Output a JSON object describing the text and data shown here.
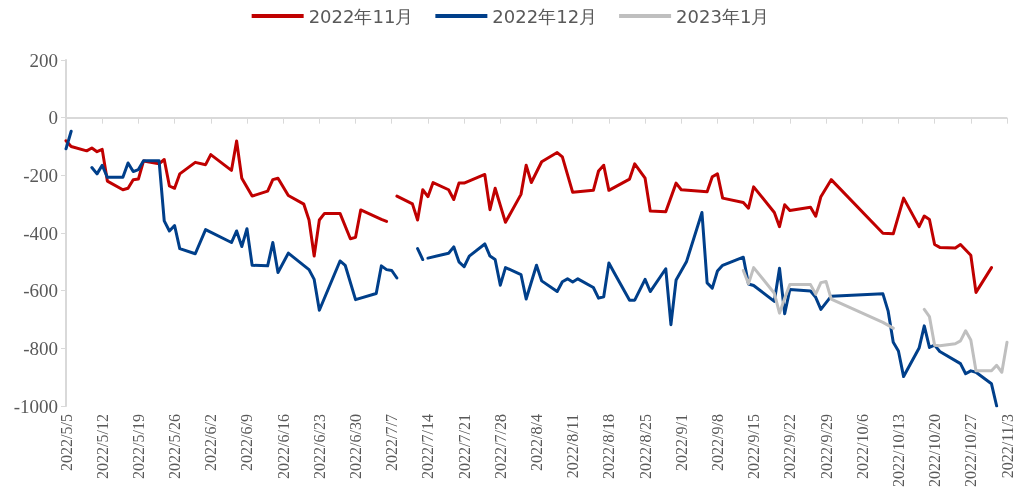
{
  "chart_data": {
    "type": "line",
    "legend": "top",
    "grid": false,
    "marker": "none",
    "line_style": "solid",
    "ref_lines": [
      {
        "axis": "y",
        "value": 0,
        "color": "#d9d9d9"
      }
    ],
    "ylim": [
      -1000,
      200
    ],
    "yticks": [
      -1000,
      -800,
      -600,
      -400,
      -200,
      0,
      200
    ],
    "xlim": [
      "2022-05-05",
      "2022-11-03"
    ],
    "xticks": [
      {
        "value": "2022-05-05",
        "label": "2022/5/5"
      },
      {
        "value": "2022-05-12",
        "label": "2022/5/12"
      },
      {
        "value": "2022-05-19",
        "label": "2022/5/19"
      },
      {
        "value": "2022-05-26",
        "label": "2022/5/26"
      },
      {
        "value": "2022-06-02",
        "label": "2022/6/2"
      },
      {
        "value": "2022-06-09",
        "label": "2022/6/9"
      },
      {
        "value": "2022-06-16",
        "label": "2022/6/16"
      },
      {
        "value": "2022-06-23",
        "label": "2022/6/23"
      },
      {
        "value": "2022-06-30",
        "label": "2022/6/30"
      },
      {
        "value": "2022-07-07",
        "label": "2022/7/7"
      },
      {
        "value": "2022-07-14",
        "label": "2022/7/14"
      },
      {
        "value": "2022-07-21",
        "label": "2022/7/21"
      },
      {
        "value": "2022-07-28",
        "label": "2022/7/28"
      },
      {
        "value": "2022-08-04",
        "label": "2022/8/4"
      },
      {
        "value": "2022-08-11",
        "label": "2022/8/11"
      },
      {
        "value": "2022-08-18",
        "label": "2022/8/18"
      },
      {
        "value": "2022-08-25",
        "label": "2022/8/25"
      },
      {
        "value": "2022-09-01",
        "label": "2022/9/1"
      },
      {
        "value": "2022-09-08",
        "label": "2022/9/8"
      },
      {
        "value": "2022-09-15",
        "label": "2022/9/15"
      },
      {
        "value": "2022-09-22",
        "label": "2022/9/22"
      },
      {
        "value": "2022-09-29",
        "label": "2022/9/29"
      },
      {
        "value": "2022-10-06",
        "label": "2022/10/6"
      },
      {
        "value": "2022-10-13",
        "label": "2022/10/13"
      },
      {
        "value": "2022-10-20",
        "label": "2022/10/20"
      },
      {
        "value": "2022-10-27",
        "label": "2022/10/27"
      },
      {
        "value": "2022-11-03",
        "label": "2022/11/3"
      }
    ],
    "series": [
      {
        "name": "2022年11月",
        "color": "#c00000",
        "x": [
          "2022-05-05",
          "2022-05-06",
          "2022-05-09",
          "2022-05-10",
          "2022-05-11",
          "2022-05-12",
          "2022-05-13",
          "2022-05-16",
          "2022-05-17",
          "2022-05-18",
          "2022-05-19",
          "2022-05-20",
          "2022-05-23",
          "2022-05-24",
          "2022-05-25",
          "2022-05-26",
          "2022-05-27",
          "2022-05-30",
          "2022-06-01",
          "2022-06-02",
          "2022-06-06",
          "2022-06-07",
          "2022-06-08",
          "2022-06-10",
          "2022-06-13",
          "2022-06-14",
          "2022-06-15",
          "2022-06-17",
          "2022-06-20",
          "2022-06-21",
          "2022-06-22",
          "2022-06-23",
          "2022-06-24",
          "2022-06-27",
          "2022-06-29",
          "2022-06-30",
          "2022-07-01",
          "2022-07-05",
          "2022-07-06",
          "2022-07-07",
          "2022-07-08",
          "2022-07-11",
          "2022-07-12",
          "2022-07-13",
          "2022-07-14",
          "2022-07-15",
          "2022-07-18",
          "2022-07-19",
          "2022-07-20",
          "2022-07-21",
          "2022-07-25",
          "2022-07-26",
          "2022-07-27",
          "2022-07-29",
          "2022-08-01",
          "2022-08-02",
          "2022-08-03",
          "2022-08-05",
          "2022-08-08",
          "2022-08-09",
          "2022-08-11",
          "2022-08-15",
          "2022-08-16",
          "2022-08-17",
          "2022-08-18",
          "2022-08-22",
          "2022-08-23",
          "2022-08-25",
          "2022-08-26",
          "2022-08-29",
          "2022-08-31",
          "2022-09-01",
          "2022-09-06",
          "2022-09-07",
          "2022-09-08",
          "2022-09-09",
          "2022-09-13",
          "2022-09-14",
          "2022-09-15",
          "2022-09-19",
          "2022-09-20",
          "2022-09-21",
          "2022-09-22",
          "2022-09-26",
          "2022-09-27",
          "2022-09-28",
          "2022-09-30",
          "2022-10-10",
          "2022-10-12",
          "2022-10-14",
          "2022-10-17",
          "2022-10-18",
          "2022-10-19",
          "2022-10-20",
          "2022-10-21",
          "2022-10-24",
          "2022-10-25",
          "2022-10-27",
          "2022-10-28",
          "2022-10-31"
        ],
        "values": [
          -80,
          -100,
          -115,
          -105,
          -118,
          -110,
          -220,
          -250,
          -245,
          -215,
          -213,
          -150,
          -160,
          -145,
          -237,
          -245,
          -195,
          -155,
          -163,
          -128,
          -183,
          -81,
          -210,
          -272,
          -255,
          -215,
          -210,
          -270,
          -300,
          -355,
          -480,
          -355,
          -332,
          -332,
          -420,
          -415,
          -320,
          -353,
          -360,
          null,
          -272,
          -299,
          -355,
          -250,
          -274,
          -225,
          -250,
          -284,
          -227,
          -227,
          -197,
          -319,
          -245,
          -363,
          -266,
          -165,
          -225,
          -153,
          -121,
          -136,
          -259,
          -252,
          -185,
          -165,
          -252,
          -213,
          -160,
          -210,
          -324,
          -326,
          -227,
          -250,
          -257,
          -205,
          -195,
          -279,
          -294,
          -314,
          -240,
          -329,
          -378,
          -302,
          -322,
          -311,
          -342,
          -274,
          -215,
          -401,
          -403,
          -279,
          -378,
          -341,
          -353,
          -440,
          -450,
          -452,
          -440,
          -477,
          -606,
          -520
        ]
      },
      {
        "name": "2022年12月",
        "color": "#003f8a",
        "x": [
          "2022-05-05",
          "2022-05-06",
          "2022-05-09",
          "2022-05-10",
          "2022-05-11",
          "2022-05-12",
          "2022-05-13",
          "2022-05-16",
          "2022-05-17",
          "2022-05-18",
          "2022-05-19",
          "2022-05-20",
          "2022-05-23",
          "2022-05-24",
          "2022-05-25",
          "2022-05-26",
          "2022-05-27",
          "2022-05-30",
          "2022-06-01",
          "2022-06-06",
          "2022-06-07",
          "2022-06-08",
          "2022-06-09",
          "2022-06-10",
          "2022-06-13",
          "2022-06-14",
          "2022-06-15",
          "2022-06-17",
          "2022-06-21",
          "2022-06-22",
          "2022-06-23",
          "2022-06-27",
          "2022-06-28",
          "2022-06-30",
          "2022-07-04",
          "2022-07-05",
          "2022-07-06",
          "2022-07-07",
          "2022-07-08",
          "2022-07-11",
          "2022-07-12",
          "2022-07-13",
          "2022-07-13T12:00",
          "2022-07-14",
          "2022-07-18",
          "2022-07-19",
          "2022-07-20",
          "2022-07-21",
          "2022-07-22",
          "2022-07-25",
          "2022-07-26",
          "2022-07-27",
          "2022-07-28",
          "2022-07-29",
          "2022-08-01",
          "2022-08-02",
          "2022-08-04",
          "2022-08-05",
          "2022-08-08",
          "2022-08-09",
          "2022-08-10",
          "2022-08-11",
          "2022-08-12",
          "2022-08-15",
          "2022-08-16",
          "2022-08-17",
          "2022-08-18",
          "2022-08-19",
          "2022-08-22",
          "2022-08-23",
          "2022-08-25",
          "2022-08-26",
          "2022-08-29",
          "2022-08-30",
          "2022-08-31",
          "2022-09-02",
          "2022-09-05",
          "2022-09-06",
          "2022-09-07",
          "2022-09-08",
          "2022-09-09",
          "2022-09-13",
          "2022-09-14",
          "2022-09-15",
          "2022-09-19",
          "2022-09-20",
          "2022-09-21",
          "2022-09-22",
          "2022-09-26",
          "2022-09-27",
          "2022-09-28",
          "2022-09-30",
          "2022-10-10",
          "2022-10-11",
          "2022-10-12",
          "2022-10-13",
          "2022-10-14",
          "2022-10-17",
          "2022-10-18",
          "2022-10-19",
          "2022-10-20",
          "2022-10-21",
          "2022-10-25",
          "2022-10-26",
          "2022-10-27",
          "2022-10-28",
          "2022-10-31",
          "2022-11-01"
        ],
        "values": [
          -108,
          -47,
          null,
          -173,
          -195,
          -165,
          -207,
          -207,
          -157,
          -187,
          -180,
          -149,
          -149,
          -358,
          -393,
          -374,
          -454,
          -472,
          -388,
          -433,
          -393,
          -447,
          -385,
          -512,
          -514,
          -433,
          -537,
          -470,
          -527,
          -561,
          -668,
          -497,
          -512,
          -631,
          -610,
          -514,
          -527,
          -530,
          -556,
          null,
          -454,
          -492,
          null,
          -487,
          -470,
          -448,
          -500,
          -517,
          -480,
          -438,
          -480,
          -492,
          -581,
          -520,
          -544,
          -629,
          -512,
          -566,
          -603,
          -569,
          -559,
          -570,
          -559,
          -589,
          -626,
          -621,
          -504,
          -537,
          -633,
          -633,
          -561,
          -603,
          -524,
          -718,
          -563,
          -500,
          -329,
          -573,
          -591,
          -532,
          -512,
          -484,
          -577,
          -582,
          -637,
          -522,
          -680,
          -596,
          -601,
          -623,
          -665,
          -619,
          -611,
          -670,
          -779,
          -809,
          -898,
          -799,
          -722,
          -797,
          -789,
          -811,
          -853,
          -888,
          -878,
          -883,
          -923,
          -1000
        ]
      },
      {
        "name": "2023年1月",
        "color": "#bfbfbf",
        "x": [
          "2022-09-13",
          "2022-09-14",
          "2022-09-15",
          "2022-09-19",
          "2022-09-20",
          "2022-09-21",
          "2022-09-22",
          "2022-09-26",
          "2022-09-27",
          "2022-09-28",
          "2022-09-29",
          "2022-09-30",
          "2022-10-10",
          "2022-10-12",
          "2022-10-14",
          "2022-10-18",
          "2022-10-19",
          "2022-10-20",
          "2022-10-21",
          "2022-10-24",
          "2022-10-25",
          "2022-10-26",
          "2022-10-27",
          "2022-10-28",
          "2022-10-31",
          "2022-11-01",
          "2022-11-02",
          "2022-11-03"
        ],
        "values": [
          -530,
          -576,
          -520,
          -609,
          -678,
          -626,
          -579,
          -579,
          -612,
          -572,
          -568,
          -629,
          -710,
          -730,
          null,
          -665,
          -690,
          -789,
          -791,
          -784,
          -774,
          -739,
          -771,
          -878,
          -878,
          -859,
          -883,
          -779
        ]
      }
    ]
  }
}
